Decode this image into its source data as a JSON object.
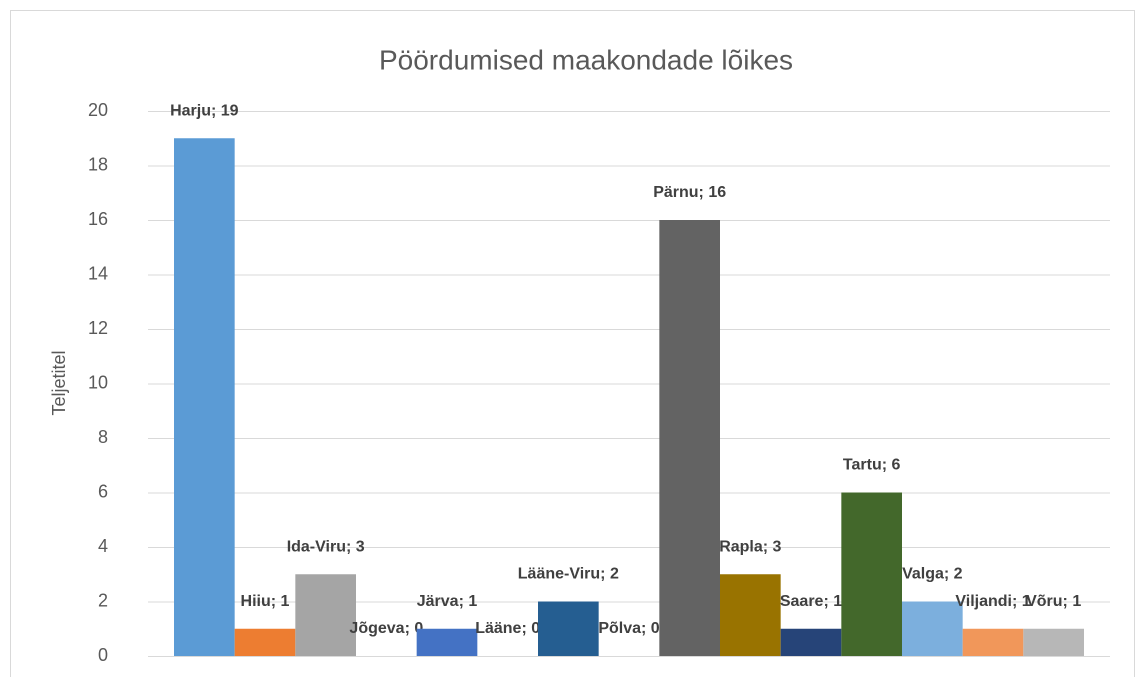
{
  "chart_data": {
    "type": "bar",
    "title": "Pöördumised maakondade lõikes",
    "y_label": "Teljetitel",
    "categories": [
      "Harju",
      "Hiiu",
      "Ida-Viru",
      "Jõgeva",
      "Järva",
      "Lääne",
      "Lääne-Viru",
      "Põlva",
      "Pärnu",
      "Rapla",
      "Saare",
      "Tartu",
      "Valga",
      "Viljandi",
      "Võru"
    ],
    "values": [
      19,
      1,
      3,
      0,
      1,
      0,
      2,
      0,
      16,
      3,
      1,
      6,
      2,
      1,
      1
    ],
    "value_labels": [
      "Harju; 19",
      "Hiiu; 1",
      "Ida-Viru; 3",
      "Jõgeva; 0",
      "Järva; 1",
      "Lääne; 0",
      "Lääne-Viru; 2",
      "Põlva; 0",
      "Pärnu; 16",
      "Rapla; 3",
      "Saare; 1",
      "Tartu; 6",
      "Valga; 2",
      "Viljandi; 1",
      "Võru; 1"
    ],
    "colors": [
      "#5b9bd5",
      "#ed7d31",
      "#a5a5a5",
      "#ffc000",
      "#4472c4",
      "#70ad47",
      "#255e91",
      "#9e480e",
      "#636363",
      "#997300",
      "#264478",
      "#43682b",
      "#7cafdd",
      "#f1975a",
      "#b7b7b7"
    ],
    "ylim": [
      0,
      20
    ],
    "yticks": [
      0,
      2,
      4,
      6,
      8,
      10,
      12,
      14,
      16,
      18,
      20
    ],
    "grid": true
  }
}
